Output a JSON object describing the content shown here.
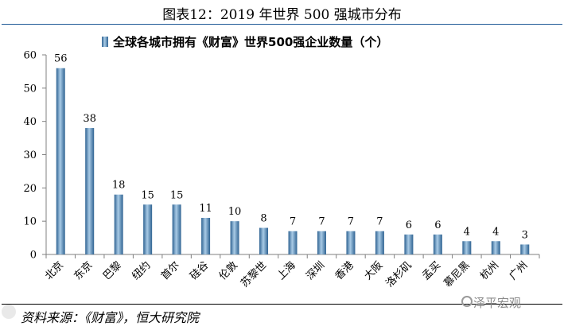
{
  "figure": {
    "title": "图表12：2019 年世界 500 强城市分布",
    "source": "资料来源：《财富》，恒大研究院",
    "watermark": "泽平宏观",
    "watermark_icon": "wechat-icon"
  },
  "chart_data": {
    "type": "bar",
    "categories": [
      "北京",
      "东京",
      "巴黎",
      "纽约",
      "首尔",
      "硅谷",
      "伦敦",
      "苏黎世",
      "上海",
      "深圳",
      "香港",
      "大阪",
      "洛杉矶",
      "孟买",
      "慕尼黑",
      "杭州",
      "广州"
    ],
    "series": [
      {
        "name": "全球各城市拥有《财富》世界500强企业数量（个）",
        "values": [
          56,
          38,
          18,
          15,
          15,
          11,
          10,
          8,
          7,
          7,
          7,
          7,
          6,
          6,
          4,
          4,
          3
        ]
      }
    ],
    "ylim": [
      0,
      60
    ],
    "yticks": [
      0,
      10,
      20,
      30,
      40,
      50,
      60
    ],
    "grid": false,
    "legend_position": "top-center",
    "colors": {
      "bar": "#4a86b8",
      "bar_light": "#a9cbe6",
      "bar_dark": "#2f6392",
      "axis": "#808080"
    }
  }
}
